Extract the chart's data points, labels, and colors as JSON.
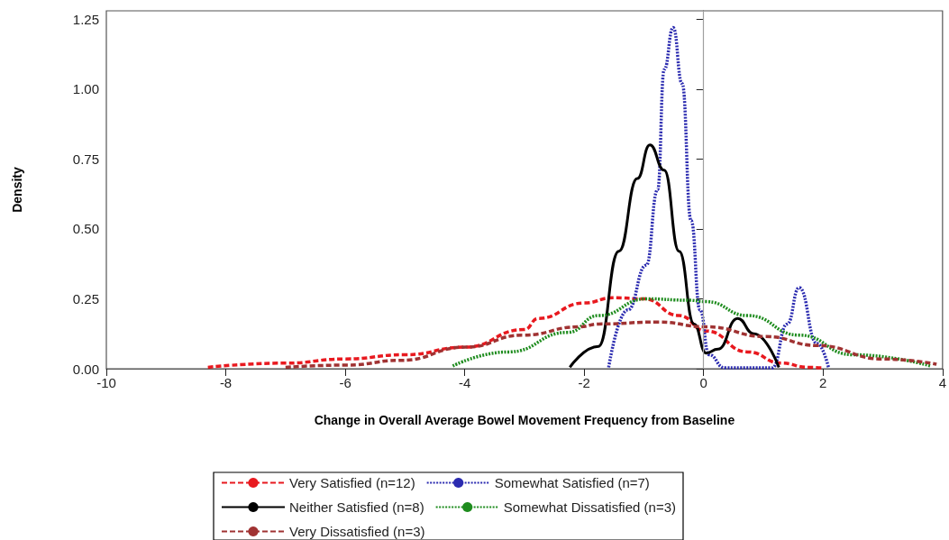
{
  "chart_data": {
    "type": "line",
    "xlabel": "Change in Overall Average Bowel Movement Frequency from Baseline",
    "ylabel": "Density",
    "xlim": [
      -10,
      4
    ],
    "xticks": [
      -10,
      -8,
      -6,
      -4,
      -2,
      0,
      2,
      4
    ],
    "ylim": [
      0,
      1.28
    ],
    "yticks": [
      {
        "value": 0,
        "label": "0.00"
      },
      {
        "value": 0.25,
        "label": "0.25"
      },
      {
        "value": 0.5,
        "label": "0.50"
      },
      {
        "value": 0.75,
        "label": "0.75"
      },
      {
        "value": 1,
        "label": "1.00"
      },
      {
        "value": 1.25,
        "label": "1.25"
      }
    ],
    "grid": false,
    "legend": "bottom",
    "marker": "none",
    "ref_lines": [
      {
        "axis": "x",
        "value": 0,
        "color": "#a0a0a0",
        "line_style": "solid"
      }
    ],
    "series": [
      {
        "name": "Very Satisfied (n=12)",
        "color": "#e8191f",
        "line_style": "dashed",
        "x": [
          -8.3,
          -7,
          -6,
          -5,
          -4,
          -3,
          -2.77,
          -2,
          -1.52,
          -1,
          -0.41,
          0.04,
          0.74,
          1.3,
          1.75,
          2
        ],
        "values": [
          0.005,
          0.02,
          0.035,
          0.05,
          0.077,
          0.14,
          0.18,
          0.235,
          0.254,
          0.25,
          0.19,
          0.135,
          0.06,
          0.02,
          0.005,
          0.003
        ]
      },
      {
        "name": "Somewhat Satisfied (n=7)",
        "color": "#2b2bb0",
        "line_style": "dotted",
        "x": [
          -1.59,
          -1.27,
          -0.96,
          -0.77,
          -0.66,
          -0.51,
          -0.36,
          -0.21,
          -0.06,
          0.09,
          0.35,
          1.15,
          1.4,
          1.6,
          1.9,
          2.09
        ],
        "values": [
          0.005,
          0.21,
          0.37,
          0.64,
          1.07,
          1.22,
          1.02,
          0.53,
          0.21,
          0.05,
          0.003,
          0.003,
          0.16,
          0.29,
          0.09,
          0.005
        ]
      },
      {
        "name": "Neither Satisfied (n=8)",
        "color": "#000000",
        "line_style": "solid",
        "x": [
          -2.24,
          -1.76,
          -1.42,
          -1.11,
          -0.9,
          -0.66,
          -0.41,
          -0.16,
          0.04,
          0.24,
          0.57,
          0.84,
          1.26
        ],
        "values": [
          0.005,
          0.08,
          0.42,
          0.68,
          0.8,
          0.71,
          0.42,
          0.16,
          0.056,
          0.07,
          0.18,
          0.125,
          0.005
        ]
      },
      {
        "name": "Somewhat Dissatisfied (n=3)",
        "color": "#1e8c1e",
        "line_style": "dotted",
        "x": [
          -4.2,
          -3.27,
          -2.27,
          -1.76,
          -0.96,
          -0.26,
          0.04,
          0.74,
          1.6,
          2.5,
          3.8
        ],
        "values": [
          0.01,
          0.06,
          0.13,
          0.19,
          0.25,
          0.245,
          0.24,
          0.19,
          0.12,
          0.05,
          0.01
        ]
      },
      {
        "name": "Very Dissatisfied (n=3)",
        "color": "#a03232",
        "line_style": "dashed",
        "x": [
          -7,
          -5.98,
          -5.07,
          -3.98,
          -3.03,
          -2.07,
          -1.76,
          -0.77,
          0.04,
          1.04,
          1.9,
          3,
          3.9
        ],
        "values": [
          0.005,
          0.013,
          0.03,
          0.077,
          0.12,
          0.15,
          0.16,
          0.167,
          0.15,
          0.115,
          0.083,
          0.035,
          0.016
        ]
      }
    ]
  }
}
